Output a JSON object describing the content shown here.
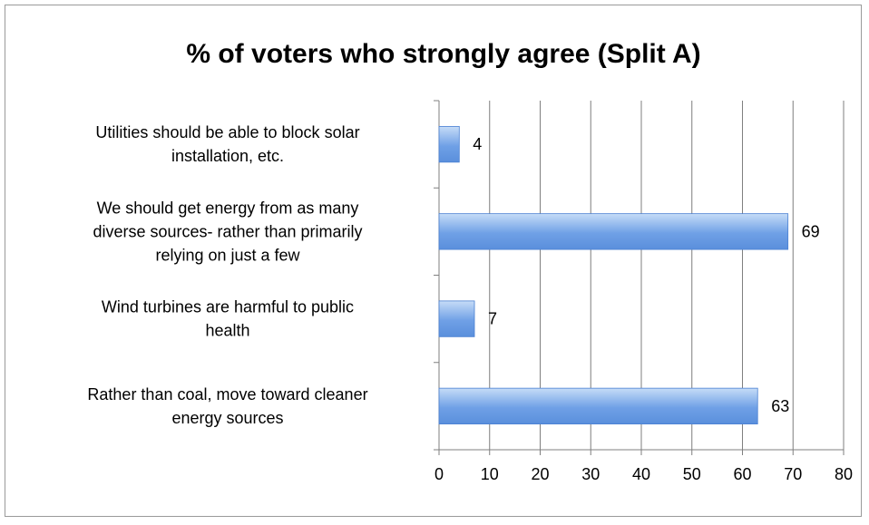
{
  "chart_data": {
    "type": "bar",
    "orientation": "horizontal",
    "title": "% of voters who strongly agree (Split A)",
    "categories": [
      "Utilities should be able to block solar installation, etc.",
      "We should get energy from as many diverse sources- rather than primarily relying on just a few",
      "Wind turbines are harmful to public health",
      "Rather than coal, move toward cleaner energy sources"
    ],
    "category_lines": [
      [
        "Utilities should be able to block solar",
        "installation, etc."
      ],
      [
        "We should get energy from as many",
        "diverse sources- rather than primarily",
        "relying on just a few"
      ],
      [
        "Wind turbines are harmful to public",
        "health"
      ],
      [
        "Rather than coal, move toward cleaner",
        "energy sources"
      ]
    ],
    "values": [
      4,
      69,
      7,
      63
    ],
    "data_labels": [
      "4",
      "69",
      "7",
      "63"
    ],
    "xlim": [
      0,
      80
    ],
    "x_ticks": [
      0,
      10,
      20,
      30,
      40,
      50,
      60,
      70,
      80
    ],
    "x_tick_labels": [
      "0",
      "10",
      "20",
      "30",
      "40",
      "50",
      "60",
      "70",
      "80"
    ],
    "grid": true,
    "legend": false,
    "bar_color": "#6fa0e6",
    "bar_color_light": "#c6dcf7",
    "bar_border": "#4a80d2",
    "grid_color": "#7f7f7f"
  }
}
